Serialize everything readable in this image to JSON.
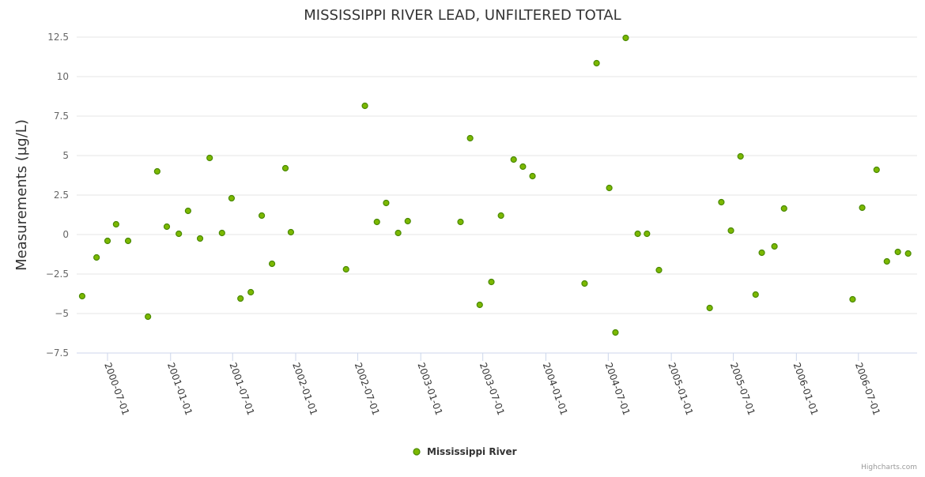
{
  "chart_data": {
    "type": "scatter",
    "title": "MISSISSIPPI RIVER LEAD, UNFILTERED TOTAL",
    "xlabel": "",
    "ylabel": "Measurements (µg/L)",
    "ylim": [
      -7.5,
      12.5
    ],
    "yticks": [
      -7.5,
      -5,
      -2.5,
      0,
      2.5,
      5,
      7.5,
      10,
      12.5
    ],
    "ytick_labels": [
      "−7.5",
      "−5",
      "−2.5",
      "0",
      "2.5",
      "5",
      "7.5",
      "10",
      "12.5"
    ],
    "xticks": [
      "2000-07-01",
      "2001-01-01",
      "2001-07-01",
      "2002-01-01",
      "2002-07-01",
      "2003-01-01",
      "2003-07-01",
      "2004-01-01",
      "2004-07-01",
      "2005-01-01",
      "2005-07-01",
      "2006-01-01",
      "2006-07-01"
    ],
    "grid": true,
    "legend_position": "bottom-center",
    "series": [
      {
        "name": "Mississippi River",
        "color": "#7cb800",
        "border_color": "#4a8a00",
        "points": [
          [
            "2000-04-18",
            -3.9
          ],
          [
            "2000-05-30",
            -1.45
          ],
          [
            "2000-07-01",
            -0.4
          ],
          [
            "2000-07-26",
            0.65
          ],
          [
            "2000-08-30",
            -0.4
          ],
          [
            "2000-10-27",
            -5.2
          ],
          [
            "2000-11-23",
            4.0
          ],
          [
            "2000-12-21",
            0.5
          ],
          [
            "2001-01-25",
            0.05
          ],
          [
            "2001-02-21",
            1.5
          ],
          [
            "2001-03-28",
            -0.25
          ],
          [
            "2001-04-25",
            4.85
          ],
          [
            "2001-05-31",
            0.1
          ],
          [
            "2001-06-28",
            2.3
          ],
          [
            "2001-07-24",
            -4.05
          ],
          [
            "2001-08-23",
            -3.65
          ],
          [
            "2001-09-24",
            1.2
          ],
          [
            "2001-10-24",
            -1.85
          ],
          [
            "2001-12-02",
            4.2
          ],
          [
            "2001-12-18",
            0.15
          ],
          [
            "2002-05-28",
            -2.2
          ],
          [
            "2002-07-22",
            8.15
          ],
          [
            "2002-08-26",
            0.8
          ],
          [
            "2002-09-22",
            2.0
          ],
          [
            "2002-10-27",
            0.1
          ],
          [
            "2002-11-24",
            0.85
          ],
          [
            "2003-04-27",
            0.8
          ],
          [
            "2003-05-25",
            6.1
          ],
          [
            "2003-06-22",
            -4.45
          ],
          [
            "2003-07-26",
            -3.0
          ],
          [
            "2003-08-23",
            1.2
          ],
          [
            "2003-09-29",
            4.75
          ],
          [
            "2003-10-26",
            4.3
          ],
          [
            "2003-11-23",
            3.7
          ],
          [
            "2004-04-23",
            -3.1
          ],
          [
            "2004-05-28",
            10.85
          ],
          [
            "2004-07-04",
            2.95
          ],
          [
            "2004-07-22",
            -6.2
          ],
          [
            "2004-08-21",
            12.45
          ],
          [
            "2004-09-25",
            0.05
          ],
          [
            "2004-10-22",
            0.05
          ],
          [
            "2004-11-26",
            -2.25
          ],
          [
            "2005-04-23",
            -4.65
          ],
          [
            "2005-05-27",
            2.05
          ],
          [
            "2005-06-24",
            0.25
          ],
          [
            "2005-07-22",
            4.95
          ],
          [
            "2005-09-04",
            -3.8
          ],
          [
            "2005-09-22",
            -1.15
          ],
          [
            "2005-10-29",
            -0.75
          ],
          [
            "2005-11-26",
            1.65
          ],
          [
            "2006-06-14",
            -4.1
          ],
          [
            "2006-07-12",
            1.7
          ],
          [
            "2006-08-23",
            4.1
          ],
          [
            "2006-09-22",
            -1.7
          ],
          [
            "2006-10-24",
            -1.1
          ],
          [
            "2006-11-23",
            -1.2
          ]
        ]
      }
    ]
  },
  "credits": "Highcharts.com"
}
